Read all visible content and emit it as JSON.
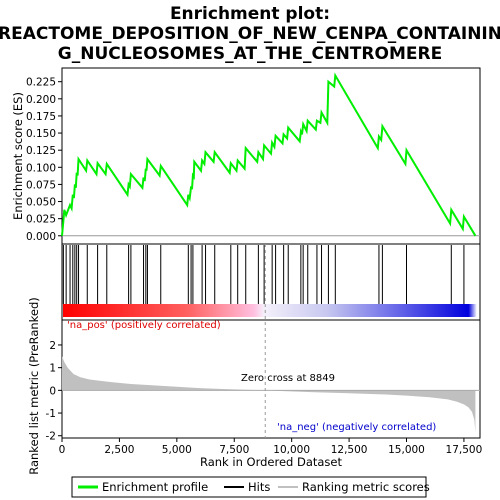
{
  "chart_data": {
    "type": "line",
    "title_line1": "Enrichment plot:",
    "title_line2": "REACTOME_DEPOSITION_OF_NEW_CENPA_CONTAININ",
    "title_line3": "G_NUCLEOSOMES_AT_THE_CENTROMERE",
    "es_ylabel": "Enrichment score (ES)",
    "metric_ylabel": "Ranked list metric (PreRanked)",
    "xlabel": "Rank in Ordered Dataset",
    "xlim": [
      0,
      18200
    ],
    "x_ticks": [
      0,
      2500,
      5000,
      7500,
      10000,
      12500,
      15000,
      17500
    ],
    "x_tick_labels": [
      "0",
      "2,500",
      "5,000",
      "7,500",
      "10,000",
      "12,500",
      "15,000",
      "17,500"
    ],
    "es_ylim": [
      -0.012,
      0.245
    ],
    "es_ticks": [
      0.0,
      0.025,
      0.05,
      0.075,
      0.1,
      0.125,
      0.15,
      0.175,
      0.2,
      0.225
    ],
    "es_tick_labels": [
      "0.000",
      "0.025",
      "0.050",
      "0.075",
      "0.100",
      "0.125",
      "0.150",
      "0.175",
      "0.200",
      "0.225"
    ],
    "metric_ylim": [
      -2.1,
      3.1
    ],
    "metric_ticks": [
      -2,
      -1,
      0,
      1,
      2
    ],
    "metric_tick_labels": [
      "-2",
      "-1",
      "0",
      "1",
      "2"
    ],
    "hits": [
      60,
      180,
      350,
      470,
      560,
      640,
      720,
      1100,
      1550,
      1950,
      2900,
      3000,
      3550,
      3650,
      3720,
      4300,
      5500,
      5620,
      5700,
      6100,
      6250,
      6650,
      7350,
      7650,
      8000,
      8550,
      8800,
      9150,
      9300,
      9650,
      9850,
      10400,
      10500,
      10700,
      11100,
      11300,
      11600,
      11900,
      13800,
      13950,
      15000,
      16950,
      17500
    ],
    "es_points": [
      [
        0,
        0.0
      ],
      [
        60,
        0.022
      ],
      [
        100,
        0.038
      ],
      [
        180,
        0.03
      ],
      [
        350,
        0.045
      ],
      [
        420,
        0.04
      ],
      [
        470,
        0.06
      ],
      [
        520,
        0.055
      ],
      [
        560,
        0.075
      ],
      [
        600,
        0.07
      ],
      [
        640,
        0.092
      ],
      [
        680,
        0.088
      ],
      [
        720,
        0.112
      ],
      [
        1050,
        0.095
      ],
      [
        1100,
        0.11
      ],
      [
        1500,
        0.09
      ],
      [
        1550,
        0.106
      ],
      [
        1900,
        0.09
      ],
      [
        1950,
        0.105
      ],
      [
        2850,
        0.06
      ],
      [
        2900,
        0.075
      ],
      [
        2950,
        0.072
      ],
      [
        3000,
        0.09
      ],
      [
        3500,
        0.07
      ],
      [
        3550,
        0.085
      ],
      [
        3600,
        0.08
      ],
      [
        3650,
        0.098
      ],
      [
        3680,
        0.095
      ],
      [
        3720,
        0.112
      ],
      [
        4250,
        0.088
      ],
      [
        4300,
        0.102
      ],
      [
        5450,
        0.045
      ],
      [
        5500,
        0.06
      ],
      [
        5560,
        0.055
      ],
      [
        5620,
        0.072
      ],
      [
        5660,
        0.068
      ],
      [
        5700,
        0.088
      ],
      [
        5740,
        0.086
      ],
      [
        5760,
        0.108
      ],
      [
        6050,
        0.095
      ],
      [
        6100,
        0.11
      ],
      [
        6200,
        0.105
      ],
      [
        6250,
        0.122
      ],
      [
        6600,
        0.108
      ],
      [
        6650,
        0.122
      ],
      [
        7300,
        0.092
      ],
      [
        7350,
        0.106
      ],
      [
        7600,
        0.095
      ],
      [
        7650,
        0.11
      ],
      [
        7950,
        0.098
      ],
      [
        8000,
        0.128
      ],
      [
        8500,
        0.108
      ],
      [
        8550,
        0.122
      ],
      [
        8750,
        0.112
      ],
      [
        8800,
        0.132
      ],
      [
        9100,
        0.12
      ],
      [
        9150,
        0.136
      ],
      [
        9250,
        0.13
      ],
      [
        9300,
        0.146
      ],
      [
        9600,
        0.135
      ],
      [
        9650,
        0.148
      ],
      [
        9800,
        0.142
      ],
      [
        9850,
        0.158
      ],
      [
        10350,
        0.138
      ],
      [
        10400,
        0.152
      ],
      [
        10450,
        0.148
      ],
      [
        10500,
        0.163
      ],
      [
        10650,
        0.153
      ],
      [
        10700,
        0.168
      ],
      [
        11050,
        0.155
      ],
      [
        11100,
        0.168
      ],
      [
        11250,
        0.165
      ],
      [
        11300,
        0.18
      ],
      [
        11550,
        0.165
      ],
      [
        11600,
        0.225
      ],
      [
        11850,
        0.218
      ],
      [
        11900,
        0.234
      ],
      [
        13750,
        0.128
      ],
      [
        13800,
        0.145
      ],
      [
        13900,
        0.14
      ],
      [
        13950,
        0.16
      ],
      [
        14950,
        0.105
      ],
      [
        15000,
        0.125
      ],
      [
        16900,
        0.018
      ],
      [
        16950,
        0.038
      ],
      [
        17450,
        0.01
      ],
      [
        17500,
        0.028
      ],
      [
        18000,
        0.0
      ]
    ],
    "metric_points": [
      [
        0,
        1.5
      ],
      [
        100,
        1.25
      ],
      [
        250,
        1.0
      ],
      [
        500,
        0.72
      ],
      [
        800,
        0.58
      ],
      [
        1200,
        0.48
      ],
      [
        2000,
        0.38
      ],
      [
        3000,
        0.28
      ],
      [
        4000,
        0.22
      ],
      [
        5000,
        0.16
      ],
      [
        6000,
        0.1
      ],
      [
        7000,
        0.06
      ],
      [
        8000,
        0.03
      ],
      [
        8849,
        0.0
      ],
      [
        9500,
        -0.03
      ],
      [
        11000,
        -0.08
      ],
      [
        12500,
        -0.13
      ],
      [
        14000,
        -0.18
      ],
      [
        15000,
        -0.23
      ],
      [
        16000,
        -0.3
      ],
      [
        16800,
        -0.4
      ],
      [
        17200,
        -0.5
      ],
      [
        17500,
        -0.62
      ],
      [
        17700,
        -0.75
      ],
      [
        17850,
        -0.95
      ],
      [
        17950,
        -1.3
      ],
      [
        18000,
        -1.85
      ]
    ],
    "zero_cross": 8849,
    "zero_cross_label": "Zero cross at 8849",
    "pos_label": "'na_pos' (positively correlated)",
    "neg_label": "'na_neg' (negatively correlated)",
    "legend": [
      "Enrichment profile",
      "Hits",
      "Ranking metric scores"
    ],
    "colors": {
      "enrichment": "#00ee00",
      "hits": "#000000",
      "metric": "#c0c0c0",
      "pos_text": "#dd0000",
      "neg_text": "#0000cc",
      "heat_red": "#ff0000",
      "heat_blue": "#0000dd"
    }
  }
}
